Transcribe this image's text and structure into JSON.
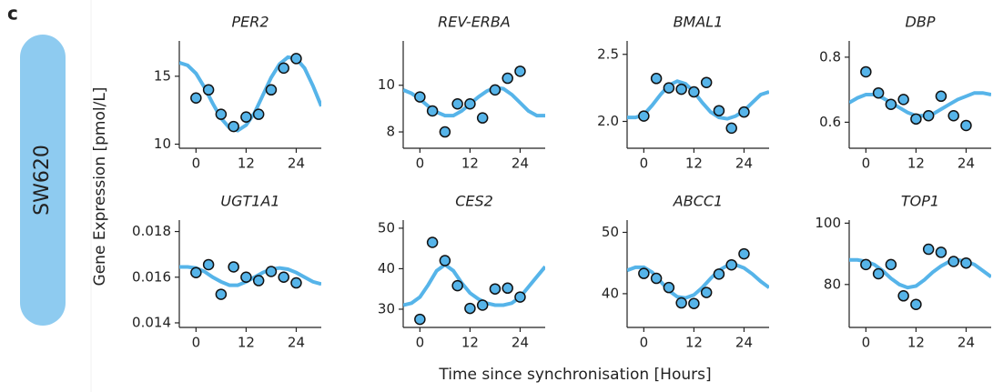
{
  "panel_label": "c",
  "row_label": "SW620",
  "ylabel": "Gene Expression [pmol/L]",
  "xlabel": "Time since synchronisation [Hours]",
  "chart_data": [
    {
      "type": "scatter",
      "title": "PER2",
      "color": "#56b4e9",
      "x": [
        0,
        3,
        6,
        9,
        12,
        15,
        18,
        21,
        24
      ],
      "values": [
        13.4,
        14.0,
        12.2,
        11.3,
        12.0,
        12.2,
        14.0,
        15.6,
        16.3
      ],
      "fit": {
        "color": "#56b4e9",
        "x": [
          -4,
          -2,
          0,
          2,
          4,
          6,
          8,
          10,
          12,
          14,
          16,
          18,
          20,
          22,
          24,
          26,
          28,
          30
        ],
        "values": [
          16.0,
          15.8,
          15.2,
          14.2,
          13.0,
          11.9,
          11.2,
          11.0,
          11.4,
          12.3,
          13.6,
          14.9,
          15.9,
          16.4,
          16.3,
          15.6,
          14.3,
          12.8
        ]
      },
      "xlim": [
        -4,
        30
      ],
      "xticks": [
        0,
        12,
        24
      ],
      "ylim": [
        9.7,
        17.6
      ],
      "yticks": [
        10,
        15
      ]
    },
    {
      "type": "scatter",
      "title": "REV-ERBA",
      "color": "#56b4e9",
      "x": [
        0,
        3,
        6,
        9,
        12,
        15,
        18,
        21,
        24
      ],
      "values": [
        9.5,
        8.9,
        8.0,
        9.2,
        9.2,
        8.6,
        9.8,
        10.3,
        10.6
      ],
      "fit": {
        "color": "#56b4e9",
        "x": [
          -4,
          -2,
          0,
          2,
          4,
          6,
          8,
          10,
          12,
          14,
          16,
          18,
          20,
          22,
          24,
          26,
          28,
          30
        ],
        "values": [
          9.8,
          9.65,
          9.4,
          9.1,
          8.85,
          8.7,
          8.7,
          8.9,
          9.2,
          9.5,
          9.75,
          9.9,
          9.85,
          9.6,
          9.25,
          8.9,
          8.7,
          8.7
        ]
      },
      "xlim": [
        -4,
        30
      ],
      "xticks": [
        0,
        12,
        24
      ],
      "ylim": [
        7.3,
        11.9
      ],
      "yticks": [
        8,
        10
      ]
    },
    {
      "type": "scatter",
      "title": "BMAL1",
      "color": "#56b4e9",
      "x": [
        0,
        3,
        6,
        9,
        12,
        15,
        18,
        21,
        24
      ],
      "values": [
        2.04,
        2.32,
        2.25,
        2.24,
        2.22,
        2.29,
        2.08,
        1.95,
        2.07
      ],
      "fit": {
        "color": "#56b4e9",
        "x": [
          -4,
          -2,
          0,
          2,
          4,
          6,
          8,
          10,
          12,
          14,
          16,
          18,
          20,
          22,
          24,
          26,
          28,
          30
        ],
        "values": [
          2.03,
          2.03,
          2.05,
          2.12,
          2.2,
          2.27,
          2.3,
          2.28,
          2.22,
          2.14,
          2.07,
          2.03,
          2.02,
          2.04,
          2.08,
          2.14,
          2.2,
          2.22
        ]
      },
      "xlim": [
        -4,
        30
      ],
      "xticks": [
        0,
        12,
        24
      ],
      "ylim": [
        1.8,
        2.6
      ],
      "yticks": [
        {
          "value": 2,
          "label": "2.0"
        },
        2.5
      ]
    },
    {
      "type": "scatter",
      "title": "DBP",
      "color": "#56b4e9",
      "x": [
        0,
        3,
        6,
        9,
        12,
        15,
        18,
        21,
        24
      ],
      "values": [
        0.755,
        0.69,
        0.655,
        0.67,
        0.61,
        0.62,
        0.68,
        0.62,
        0.59
      ],
      "fit": {
        "color": "#56b4e9",
        "x": [
          -4,
          -2,
          0,
          2,
          4,
          6,
          8,
          10,
          12,
          14,
          16,
          18,
          20,
          22,
          24,
          26,
          28,
          30
        ],
        "values": [
          0.66,
          0.675,
          0.685,
          0.685,
          0.675,
          0.66,
          0.645,
          0.63,
          0.62,
          0.62,
          0.625,
          0.64,
          0.655,
          0.67,
          0.68,
          0.69,
          0.69,
          0.685
        ]
      },
      "xlim": [
        -4,
        30
      ],
      "xticks": [
        0,
        12,
        24
      ],
      "ylim": [
        0.52,
        0.85
      ],
      "yticks": [
        0.6,
        0.8
      ]
    },
    {
      "type": "scatter",
      "title": "UGT1A1",
      "color": "#56b4e9",
      "x": [
        0,
        3,
        6,
        9,
        12,
        15,
        18,
        21,
        24
      ],
      "values": [
        0.0162,
        0.01655,
        0.01525,
        0.01645,
        0.016,
        0.01585,
        0.01625,
        0.016,
        0.01575
      ],
      "fit": {
        "color": "#56b4e9",
        "x": [
          -4,
          -2,
          0,
          2,
          4,
          6,
          8,
          10,
          12,
          14,
          16,
          18,
          20,
          22,
          24,
          26,
          28,
          30
        ],
        "values": [
          0.01645,
          0.01645,
          0.0164,
          0.01625,
          0.016,
          0.0158,
          0.01565,
          0.01565,
          0.0158,
          0.016,
          0.0162,
          0.01635,
          0.0164,
          0.01635,
          0.0162,
          0.016,
          0.0158,
          0.0157
        ]
      },
      "xlim": [
        -4,
        30
      ],
      "xticks": [
        0,
        12,
        24
      ],
      "ylim": [
        0.0138,
        0.0185
      ],
      "yticks": [
        0.014,
        0.016,
        0.018
      ]
    },
    {
      "type": "scatter",
      "title": "CES2",
      "color": "#56b4e9",
      "x": [
        0,
        3,
        6,
        9,
        12,
        15,
        18,
        21,
        24
      ],
      "values": [
        27.5,
        46.5,
        42,
        35.8,
        30.2,
        31,
        35,
        35.2,
        33
      ],
      "fit": {
        "color": "#56b4e9",
        "x": [
          -4,
          -2,
          0,
          2,
          4,
          6,
          8,
          10,
          12,
          14,
          16,
          18,
          20,
          22,
          24,
          26,
          28,
          30
        ],
        "values": [
          31,
          31.5,
          33,
          36,
          39.5,
          41,
          39.5,
          36.5,
          34,
          32.5,
          31.5,
          31,
          31,
          31.5,
          33,
          35.5,
          38,
          40.5
        ]
      },
      "xlim": [
        -4,
        30
      ],
      "xticks": [
        0,
        12,
        24
      ],
      "ylim": [
        25.5,
        52
      ],
      "yticks": [
        30,
        40,
        50
      ]
    },
    {
      "type": "scatter",
      "title": "ABCC1",
      "color": "#56b4e9",
      "x": [
        0,
        3,
        6,
        9,
        12,
        15,
        18,
        21,
        24
      ],
      "values": [
        43.3,
        42.5,
        41,
        38.5,
        38.4,
        40.2,
        43.2,
        44.7,
        46.5
      ],
      "fit": {
        "color": "#56b4e9",
        "x": [
          -4,
          -2,
          0,
          2,
          4,
          6,
          8,
          10,
          12,
          14,
          16,
          18,
          20,
          22,
          24,
          26,
          28,
          30
        ],
        "values": [
          43.8,
          44.3,
          44.3,
          43.5,
          42,
          40.5,
          39.5,
          39.3,
          39.8,
          41,
          42.5,
          43.8,
          44.6,
          44.7,
          44.2,
          43.2,
          42,
          41
        ]
      },
      "xlim": [
        -4,
        30
      ],
      "xticks": [
        0,
        12,
        24
      ],
      "ylim": [
        34.5,
        52
      ],
      "yticks": [
        40,
        50
      ]
    },
    {
      "type": "scatter",
      "title": "TOP1",
      "color": "#56b4e9",
      "x": [
        0,
        3,
        6,
        9,
        12,
        15,
        18,
        21,
        24
      ],
      "values": [
        86.5,
        83.5,
        86.5,
        76.3,
        73.5,
        91.5,
        90.5,
        87.5,
        87
      ],
      "fit": {
        "color": "#56b4e9",
        "x": [
          -4,
          -2,
          0,
          2,
          4,
          6,
          8,
          10,
          12,
          14,
          16,
          18,
          20,
          22,
          24,
          26,
          28,
          30
        ],
        "values": [
          88,
          88,
          87.5,
          86.5,
          84.5,
          82,
          80,
          79,
          79.5,
          81.5,
          84,
          86,
          87.5,
          88,
          87.5,
          86.5,
          84.5,
          82.5
        ]
      },
      "xlim": [
        -4,
        30
      ],
      "xticks": [
        0,
        12,
        24
      ],
      "ylim": [
        66,
        101
      ],
      "yticks": [
        80,
        100
      ]
    }
  ]
}
